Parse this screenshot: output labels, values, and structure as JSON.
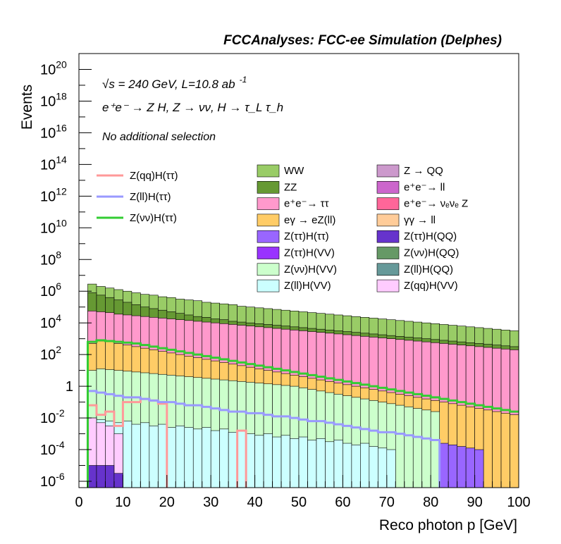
{
  "chart_data": {
    "type": "histogram",
    "log_y": true,
    "header": "FCCAnalyses: FCC-ee Simulation (Delphes)",
    "annotations": {
      "energy": "√s = 240 GeV, L=10.8 ab",
      "energy_sup": "-1",
      "process": "e⁺e⁻ → Z H, Z → νν, H → τ_L τ_h",
      "selection": "No additional selection"
    },
    "xlabel": "Reco photon p [GeV]",
    "ylabel": "Events",
    "xlim": [
      0,
      100
    ],
    "ylim_exp": [
      -6.4,
      21.0
    ],
    "x_ticks": [
      "0",
      "10",
      "20",
      "30",
      "40",
      "50",
      "60",
      "70",
      "80",
      "90",
      "100"
    ],
    "y_ticks": [
      {
        "base": "10",
        "exp": "-6",
        "e": -6
      },
      {
        "base": "10",
        "exp": "-4",
        "e": -4
      },
      {
        "base": "10",
        "exp": "-2",
        "e": -2
      },
      {
        "base": "1",
        "exp": "",
        "e": 0
      },
      {
        "base": "10",
        "exp": "2",
        "e": 2
      },
      {
        "base": "10",
        "exp": "4",
        "e": 4
      },
      {
        "base": "10",
        "exp": "6",
        "e": 6
      },
      {
        "base": "10",
        "exp": "8",
        "e": 8
      },
      {
        "base": "10",
        "exp": "10",
        "e": 10
      },
      {
        "base": "10",
        "exp": "12",
        "e": 12
      },
      {
        "base": "10",
        "exp": "14",
        "e": 14
      },
      {
        "base": "10",
        "exp": "16",
        "e": 16
      },
      {
        "base": "10",
        "exp": "18",
        "e": 18
      },
      {
        "base": "10",
        "exp": "20",
        "e": 20
      }
    ],
    "bin_edges": [
      0,
      2,
      4,
      6,
      8,
      10,
      12,
      14,
      16,
      18,
      20,
      22,
      24,
      26,
      28,
      30,
      32,
      34,
      36,
      38,
      40,
      42,
      44,
      46,
      48,
      50,
      52,
      54,
      56,
      58,
      60,
      62,
      64,
      66,
      68,
      70,
      72,
      74,
      76,
      78,
      80,
      82,
      84,
      86,
      88,
      90,
      92,
      94,
      96,
      98,
      100
    ],
    "stack_series": [
      {
        "name": "WW",
        "color": "#99cc66",
        "total_log10": [
          null,
          6.45,
          6.3,
          6.2,
          6.1,
          6.0,
          5.9,
          5.8,
          5.75,
          5.65,
          5.6,
          5.5,
          5.45,
          5.4,
          5.3,
          5.25,
          5.2,
          5.15,
          5.05,
          5.0,
          4.95,
          4.9,
          4.85,
          4.8,
          4.75,
          4.7,
          4.65,
          4.6,
          4.55,
          4.5,
          4.45,
          4.4,
          4.35,
          4.3,
          4.25,
          4.2,
          4.15,
          4.1,
          4.05,
          4.0,
          3.95,
          3.9,
          3.85,
          3.8,
          3.75,
          3.7,
          3.65,
          3.6,
          3.55,
          3.5
        ]
      },
      {
        "name": "ZZ",
        "color": "#669933",
        "total_log10": [
          null,
          5.9,
          5.75,
          5.6,
          5.45,
          5.3,
          5.15,
          5.0,
          4.9,
          4.8,
          4.7,
          4.6,
          4.5,
          4.4,
          4.35,
          4.25,
          4.2,
          4.1,
          4.05,
          4.0,
          3.95,
          3.9,
          3.85,
          3.8,
          3.75,
          3.7,
          3.65,
          3.6,
          3.55,
          3.5,
          3.45,
          3.4,
          3.35,
          3.3,
          3.25,
          3.2,
          3.15,
          3.1,
          3.05,
          3.0,
          2.95,
          2.9,
          2.85,
          2.8,
          2.75,
          2.7,
          2.65,
          2.6,
          2.55,
          2.5
        ]
      },
      {
        "name": "e⁺e⁻→ ττ",
        "color": "#ff99cc",
        "total_log10": [
          null,
          4.75,
          4.7,
          4.65,
          4.55,
          4.5,
          4.45,
          4.4,
          4.35,
          4.3,
          4.25,
          4.2,
          4.15,
          4.1,
          4.05,
          4.0,
          3.95,
          3.9,
          3.85,
          3.8,
          3.75,
          3.7,
          3.65,
          3.6,
          3.55,
          3.5,
          3.45,
          3.4,
          3.35,
          3.3,
          3.25,
          3.2,
          3.15,
          3.1,
          3.05,
          3.0,
          2.95,
          2.9,
          2.85,
          2.8,
          2.75,
          2.7,
          2.65,
          2.6,
          2.55,
          2.5,
          2.45,
          2.4,
          2.35,
          2.3
        ]
      },
      {
        "name": "eγ → eZ(ll)",
        "color": "#ffcc66",
        "total_log10": [
          null,
          2.7,
          2.85,
          2.8,
          2.7,
          2.6,
          2.5,
          2.4,
          2.3,
          2.2,
          2.1,
          2.0,
          1.9,
          1.8,
          1.7,
          1.6,
          1.5,
          1.4,
          1.3,
          1.2,
          1.1,
          1.0,
          0.9,
          0.8,
          0.7,
          0.6,
          0.5,
          0.4,
          0.3,
          0.2,
          0.1,
          0.0,
          -0.1,
          -0.2,
          -0.3,
          -0.4,
          -0.5,
          -0.6,
          -0.7,
          -0.8,
          -0.9,
          -1.0,
          -1.1,
          -1.2,
          -1.3,
          -1.4,
          -1.5,
          -1.6,
          -1.7,
          -1.8
        ]
      },
      {
        "name": "Z(ττ)H(ττ)",
        "color": "#9966ff",
        "total_log10": [
          null,
          -1.0,
          -1.0,
          -0.9,
          -1.1,
          -1.2,
          -1.0,
          -1.1,
          -1.2,
          -1.3,
          -1.4,
          -1.2,
          -1.3,
          -1.4,
          -1.5,
          -1.4,
          -1.6,
          -1.5,
          -1.6,
          -1.7,
          -1.8,
          -1.7,
          -1.8,
          -1.9,
          -2.0,
          -2.1,
          -2.0,
          -2.2,
          -2.3,
          -2.4,
          -2.5,
          -2.6,
          -2.7,
          -2.8,
          -2.9,
          -3.0,
          -3.1,
          -3.2,
          -3.3,
          -3.4,
          -3.5,
          -3.6,
          -3.7,
          -3.8,
          -3.9,
          -4.0,
          null,
          null,
          null,
          null
        ]
      },
      {
        "name": "Z(νν)H(VV)",
        "color": "#ccffcc",
        "total_log10": [
          null,
          1.0,
          1.1,
          1.05,
          1.0,
          0.95,
          0.9,
          0.85,
          0.8,
          0.75,
          0.7,
          0.65,
          0.6,
          0.55,
          0.5,
          0.45,
          0.4,
          0.35,
          0.3,
          0.25,
          0.2,
          0.15,
          0.1,
          0.05,
          0.0,
          -0.1,
          -0.2,
          -0.3,
          -0.4,
          -0.5,
          -0.6,
          -0.7,
          -0.8,
          -0.9,
          -1.0,
          -1.1,
          -1.2,
          -1.3,
          -1.4,
          -1.5,
          -1.6,
          null,
          null,
          null,
          null,
          null,
          null,
          null,
          null,
          null
        ]
      },
      {
        "name": "Z(ll)H(VV)",
        "color": "#ccffff",
        "total_log10": [
          null,
          -2.0,
          -2.1,
          -2.2,
          -2.3,
          -2.2,
          -2.4,
          -2.3,
          -2.5,
          -2.4,
          -2.6,
          -2.5,
          -2.6,
          -2.7,
          -2.6,
          -2.8,
          -2.7,
          -2.9,
          -2.8,
          -3.0,
          -3.1,
          -3.0,
          -3.2,
          -3.1,
          -3.3,
          -3.2,
          -3.4,
          -3.3,
          -3.5,
          -3.4,
          -3.6,
          -3.7,
          -3.6,
          -3.8,
          -3.9,
          -4.0,
          null,
          null,
          null,
          null,
          null,
          null,
          null,
          null,
          null,
          null,
          null,
          null,
          null,
          null
        ]
      },
      {
        "name": "Z(qq)H(VV)",
        "color": "#ffccff",
        "total_log10": [
          null,
          -2.0,
          -2.3,
          -2.5,
          -3.0,
          null,
          null,
          null,
          null,
          null,
          null,
          null,
          null,
          null,
          null,
          null,
          null,
          null,
          null,
          null,
          null,
          null,
          null,
          null,
          null,
          null,
          null,
          null,
          null,
          null,
          null,
          null,
          null,
          null,
          null,
          null,
          null,
          null,
          null,
          null,
          null,
          null,
          null,
          null,
          null,
          null,
          null,
          null,
          null,
          null
        ]
      },
      {
        "name": "Z(ττ)H(QQ)",
        "color": "#6633cc",
        "total_log10": [
          null,
          -5.0,
          -5.0,
          -5.0,
          -5.5,
          null,
          null,
          null,
          null,
          null,
          null,
          null,
          null,
          null,
          null,
          null,
          null,
          null,
          null,
          null,
          null,
          null,
          null,
          null,
          null,
          null,
          null,
          null,
          null,
          null,
          null,
          null,
          null,
          null,
          null,
          null,
          null,
          null,
          null,
          null,
          null,
          null,
          null,
          null,
          null,
          null,
          null,
          null,
          null,
          null
        ]
      }
    ],
    "extra_legend_series": [
      {
        "name": "Z → QQ",
        "color": "#cc99cc"
      },
      {
        "name": "e⁺e⁻→ ll",
        "color": "#cc66cc"
      },
      {
        "name": "e⁺e⁻→ νₑνₑ Z",
        "color": "#ff6699"
      },
      {
        "name": "γγ → ll",
        "color": "#ffcc99"
      },
      {
        "name": "Z(ττ)H(VV)",
        "color": "#9933ff"
      },
      {
        "name": "Z(νν)H(QQ)",
        "color": "#669966"
      },
      {
        "name": "Z(ll)H(QQ)",
        "color": "#669999"
      }
    ],
    "line_series": [
      {
        "name": "Z(qq)H(ττ)",
        "color": "#ff9999",
        "log10": [
          null,
          -1.2,
          -1.8,
          -1.6,
          -2.5,
          -1.0,
          -1.0,
          -0.8,
          -0.9,
          -1.1,
          null,
          null,
          null,
          null,
          null,
          null,
          null,
          null,
          -2.8,
          null,
          null,
          null,
          null,
          null,
          null,
          null,
          null,
          null,
          null,
          null,
          null,
          null,
          null,
          null,
          null,
          null,
          null,
          null,
          null,
          null,
          null,
          null,
          null,
          null,
          null,
          null,
          null,
          null,
          null,
          null
        ]
      },
      {
        "name": "Z(ll)H(ττ)",
        "color": "#9999ff",
        "log10": [
          null,
          -0.3,
          -0.4,
          -0.5,
          -0.6,
          -0.7,
          -0.7,
          -0.8,
          -0.9,
          -1.0,
          -1.0,
          -1.1,
          -1.2,
          -1.2,
          -1.3,
          -1.4,
          -1.5,
          -1.6,
          -1.6,
          -1.7,
          -1.7,
          -1.8,
          -1.9,
          -1.9,
          -2.0,
          -2.1,
          -2.2,
          -2.2,
          -2.3,
          -2.4,
          -2.5,
          -2.6,
          -2.7,
          -2.8,
          -2.9,
          -2.9,
          -3.0,
          -3.1,
          -3.2,
          -3.3,
          -3.4,
          null,
          null,
          null,
          null,
          null,
          null,
          null,
          null,
          null
        ]
      },
      {
        "name": "Z(νν)H(ττ)",
        "color": "#33cc33",
        "log10": [
          null,
          2.8,
          2.9,
          2.85,
          2.8,
          2.75,
          2.7,
          2.6,
          2.5,
          2.4,
          2.3,
          2.2,
          2.1,
          2.0,
          1.9,
          1.8,
          1.7,
          1.6,
          1.5,
          1.4,
          1.3,
          1.2,
          1.1,
          1.0,
          0.9,
          0.8,
          0.7,
          0.6,
          0.5,
          0.4,
          0.3,
          0.2,
          0.1,
          0.0,
          -0.1,
          -0.2,
          -0.3,
          -0.4,
          -0.5,
          -0.6,
          -0.7,
          -0.8,
          -0.9,
          -1.0,
          -1.1,
          -1.2,
          -1.3,
          -1.4,
          -1.5,
          -1.6
        ]
      }
    ]
  }
}
